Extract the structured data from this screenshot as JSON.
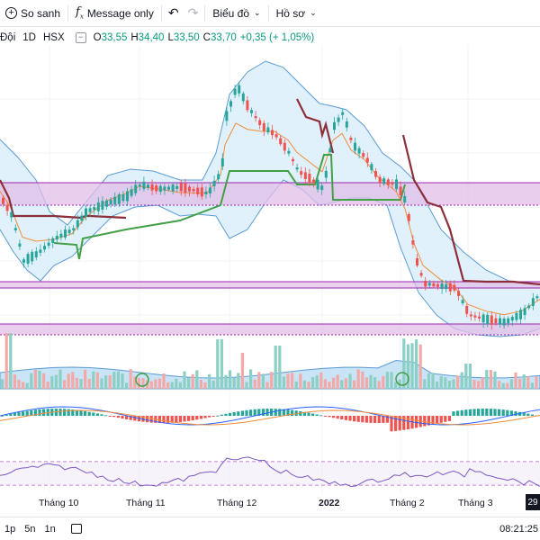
{
  "toolbar": {
    "compare_label": "So sanh",
    "message_label": "Message only",
    "chart_label": "Biểu đồ",
    "profile_label": "Hồ sơ",
    "undo_icon": "undo-icon",
    "redo_icon": "redo-icon"
  },
  "legend": {
    "symbol": "Đội",
    "interval": "1D",
    "exchange": "HSX",
    "o_label": "O",
    "o": "33,55",
    "h_label": "H",
    "h": "34,40",
    "l_label": "L",
    "l": "33,50",
    "c_label": "C",
    "c": "33,70",
    "change": "+0,35 (+ 1,05%)"
  },
  "colors": {
    "up": "#26a69a",
    "down": "#ef5350",
    "bb_line": "#5b9bd5",
    "bb_fill": "#cfe7fb",
    "zone_fill": "#e1bee7",
    "zone_line": "#9c27b0",
    "green_line": "#43a047",
    "maroon_line": "#8d2f3a",
    "ma_orange": "#f08c3a"
  },
  "xaxis": {
    "labels": [
      "Tháng 10",
      "Tháng 11",
      "Tháng 12",
      "2022",
      "Tháng 2",
      "Tháng 3"
    ],
    "current_day": "29"
  },
  "bottombar": {
    "periods": [
      "1p",
      "5n",
      "1n"
    ],
    "time": "08:21:25"
  },
  "chart_data": {
    "type": "candlestick",
    "title": "",
    "close_last": 33.7,
    "panels": [
      "price",
      "volume",
      "macd",
      "rsi"
    ]
  }
}
